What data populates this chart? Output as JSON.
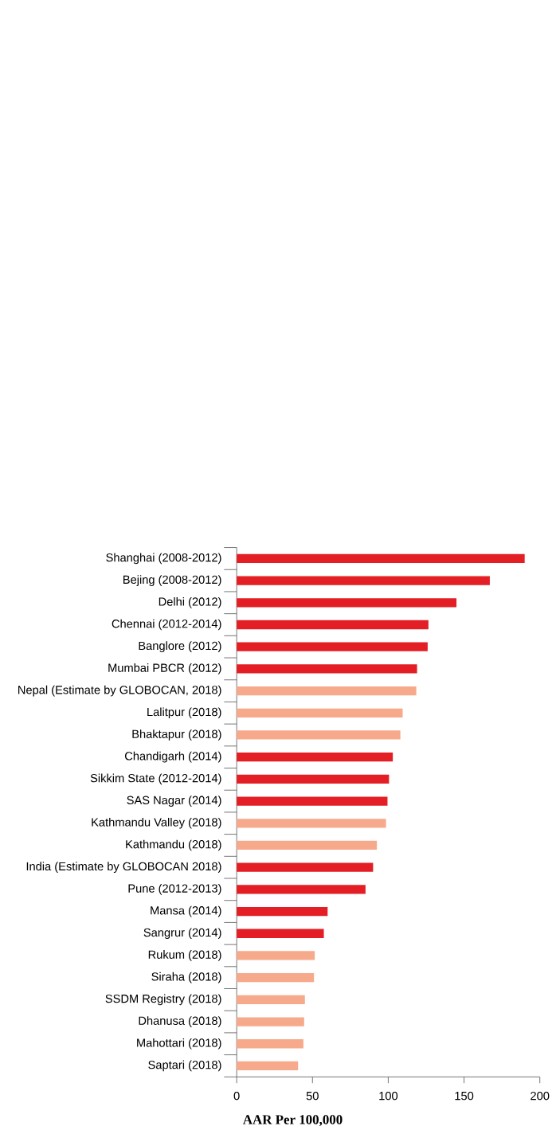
{
  "chart_data": {
    "type": "bar",
    "orientation": "horizontal",
    "xlabel": "AAR Per 100,000",
    "categories": [
      "Shanghai (2008-2012)",
      "Bejing (2008-2012)",
      "Delhi (2012)",
      "Chennai (2012-2014)",
      "Banglore (2012)",
      "Mumbai PBCR (2012)",
      "Nepal (Estimate by GLOBOCAN, 2018)",
      "Lalitpur (2018)",
      "Bhaktapur (2018)",
      "Chandigarh (2014)",
      "Sikkim State (2012-2014)",
      "SAS Nagar (2014)",
      "Kathmandu Valley (2018)",
      "Kathmandu (2018)",
      "India (Estimate by GLOBOCAN 2018)",
      "Pune (2012-2013)",
      "Mansa (2014)",
      "Sangrur (2014)",
      "Rukum (2018)",
      "Siraha (2018)",
      "SSDM Registry (2018)",
      "Dhanusa (2018)",
      "Mahottari (2018)",
      "Saptari (2018)"
    ],
    "values": [
      190,
      167,
      145,
      126.5,
      126,
      119,
      118.5,
      109.5,
      108,
      103,
      100.5,
      99.5,
      98.5,
      92.5,
      90,
      85,
      60,
      57.5,
      51.5,
      51,
      45,
      44.5,
      44,
      40.5
    ],
    "colors": [
      "#e31e24",
      "#e31e24",
      "#e31e24",
      "#e31e24",
      "#e31e24",
      "#e31e24",
      "#f7a98b",
      "#f7a98b",
      "#f7a98b",
      "#e31e24",
      "#e31e24",
      "#e31e24",
      "#f7a98b",
      "#f7a98b",
      "#e31e24",
      "#e31e24",
      "#e31e24",
      "#e31e24",
      "#f7a98b",
      "#f7a98b",
      "#f7a98b",
      "#f7a98b",
      "#f7a98b",
      "#f7a98b"
    ],
    "xlim": [
      0,
      200
    ],
    "xticks": [
      0,
      50,
      100,
      150,
      200
    ]
  }
}
